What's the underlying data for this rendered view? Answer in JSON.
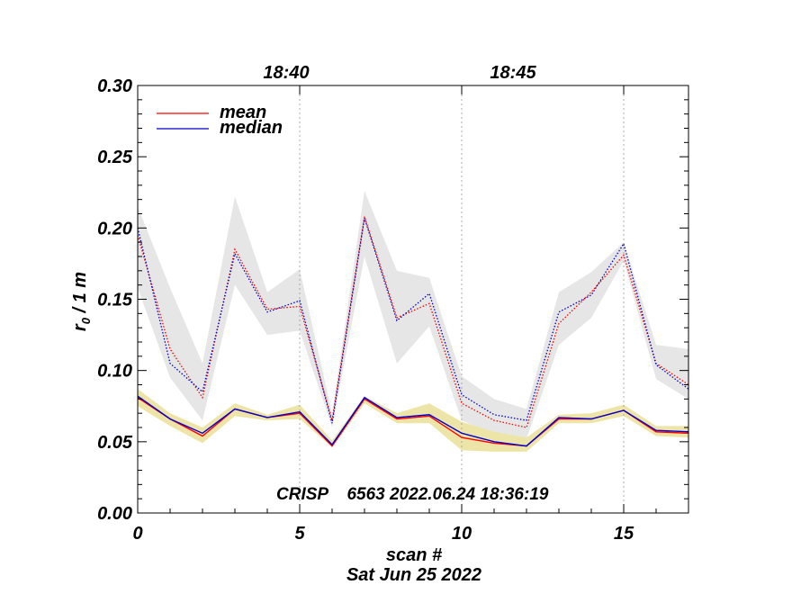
{
  "chart_data": {
    "type": "line",
    "xlabel": "scan #",
    "xlabel_sub": "Sat Jun 25 2022",
    "ylabel_base": "r",
    "ylabel_sub": "0",
    "ylabel_rest": " / 1 m",
    "xlim": [
      0,
      17
    ],
    "ylim": [
      0,
      0.3
    ],
    "x_ticks": [
      0,
      5,
      10,
      15
    ],
    "x_tick_labels": [
      "0",
      "5",
      "10",
      "15"
    ],
    "y_ticks": [
      0,
      0.05,
      0.1,
      0.15,
      0.2,
      0.25,
      0.3
    ],
    "y_tick_labels": [
      "0.00",
      "0.05",
      "0.10",
      "0.15",
      "0.20",
      "0.25",
      "0.30"
    ],
    "top_axis": {
      "ticks": [
        5,
        10,
        15
      ],
      "labels": [
        {
          "x": 5,
          "text": "18:40"
        },
        {
          "x": 12,
          "text": "18:45"
        }
      ]
    },
    "annotation": "CRISP    6563 2022.06.24 18:36:19",
    "legend": {
      "placement": "top-left",
      "entries": [
        {
          "label": "mean",
          "color": "#ff0000"
        },
        {
          "label": "median",
          "color": "#0000cc"
        }
      ]
    },
    "x": [
      0,
      1,
      2,
      3,
      4,
      5,
      6,
      7,
      8,
      9,
      10,
      11,
      12,
      13,
      14,
      15,
      16,
      17
    ],
    "series": [
      {
        "name": "mean",
        "group": "upper",
        "style": "dotted",
        "color": "#ff0000",
        "values": [
          0.195,
          0.115,
          0.081,
          0.185,
          0.143,
          0.145,
          0.065,
          0.208,
          0.137,
          0.147,
          0.077,
          0.065,
          0.06,
          0.133,
          0.155,
          0.181,
          0.105,
          0.09
        ]
      },
      {
        "name": "median",
        "group": "upper",
        "style": "dotted",
        "color": "#0000cc",
        "values": [
          0.2,
          0.105,
          0.085,
          0.182,
          0.141,
          0.149,
          0.063,
          0.207,
          0.135,
          0.154,
          0.083,
          0.069,
          0.065,
          0.141,
          0.153,
          0.189,
          0.104,
          0.087
        ]
      },
      {
        "name": "mean",
        "group": "lower",
        "style": "solid",
        "color": "#ff0000",
        "values": [
          0.081,
          0.066,
          0.054,
          0.073,
          0.067,
          0.07,
          0.047,
          0.08,
          0.066,
          0.068,
          0.053,
          0.049,
          0.047,
          0.066,
          0.066,
          0.072,
          0.057,
          0.056
        ]
      },
      {
        "name": "median",
        "group": "lower",
        "style": "solid",
        "color": "#0000cc",
        "values": [
          0.082,
          0.066,
          0.056,
          0.073,
          0.067,
          0.071,
          0.048,
          0.081,
          0.067,
          0.069,
          0.056,
          0.05,
          0.047,
          0.067,
          0.066,
          0.072,
          0.058,
          0.057
        ]
      }
    ],
    "bands": [
      {
        "name": "upper-spread",
        "color": "#e6e6e6",
        "upper": [
          0.215,
          0.158,
          0.105,
          0.222,
          0.155,
          0.171,
          0.07,
          0.226,
          0.17,
          0.165,
          0.096,
          0.08,
          0.073,
          0.155,
          0.169,
          0.19,
          0.118,
          0.115
        ],
        "lower": [
          0.158,
          0.095,
          0.065,
          0.16,
          0.125,
          0.128,
          0.06,
          0.18,
          0.105,
          0.131,
          0.065,
          0.055,
          0.052,
          0.118,
          0.137,
          0.177,
          0.094,
          0.08
        ]
      },
      {
        "name": "lower-spread",
        "color": "#ede5a8",
        "upper": [
          0.087,
          0.07,
          0.06,
          0.077,
          0.069,
          0.076,
          0.051,
          0.082,
          0.07,
          0.077,
          0.064,
          0.057,
          0.053,
          0.069,
          0.07,
          0.076,
          0.061,
          0.061
        ],
        "lower": [
          0.075,
          0.061,
          0.049,
          0.068,
          0.065,
          0.066,
          0.046,
          0.077,
          0.063,
          0.063,
          0.044,
          0.043,
          0.043,
          0.063,
          0.063,
          0.068,
          0.054,
          0.053
        ]
      }
    ]
  }
}
